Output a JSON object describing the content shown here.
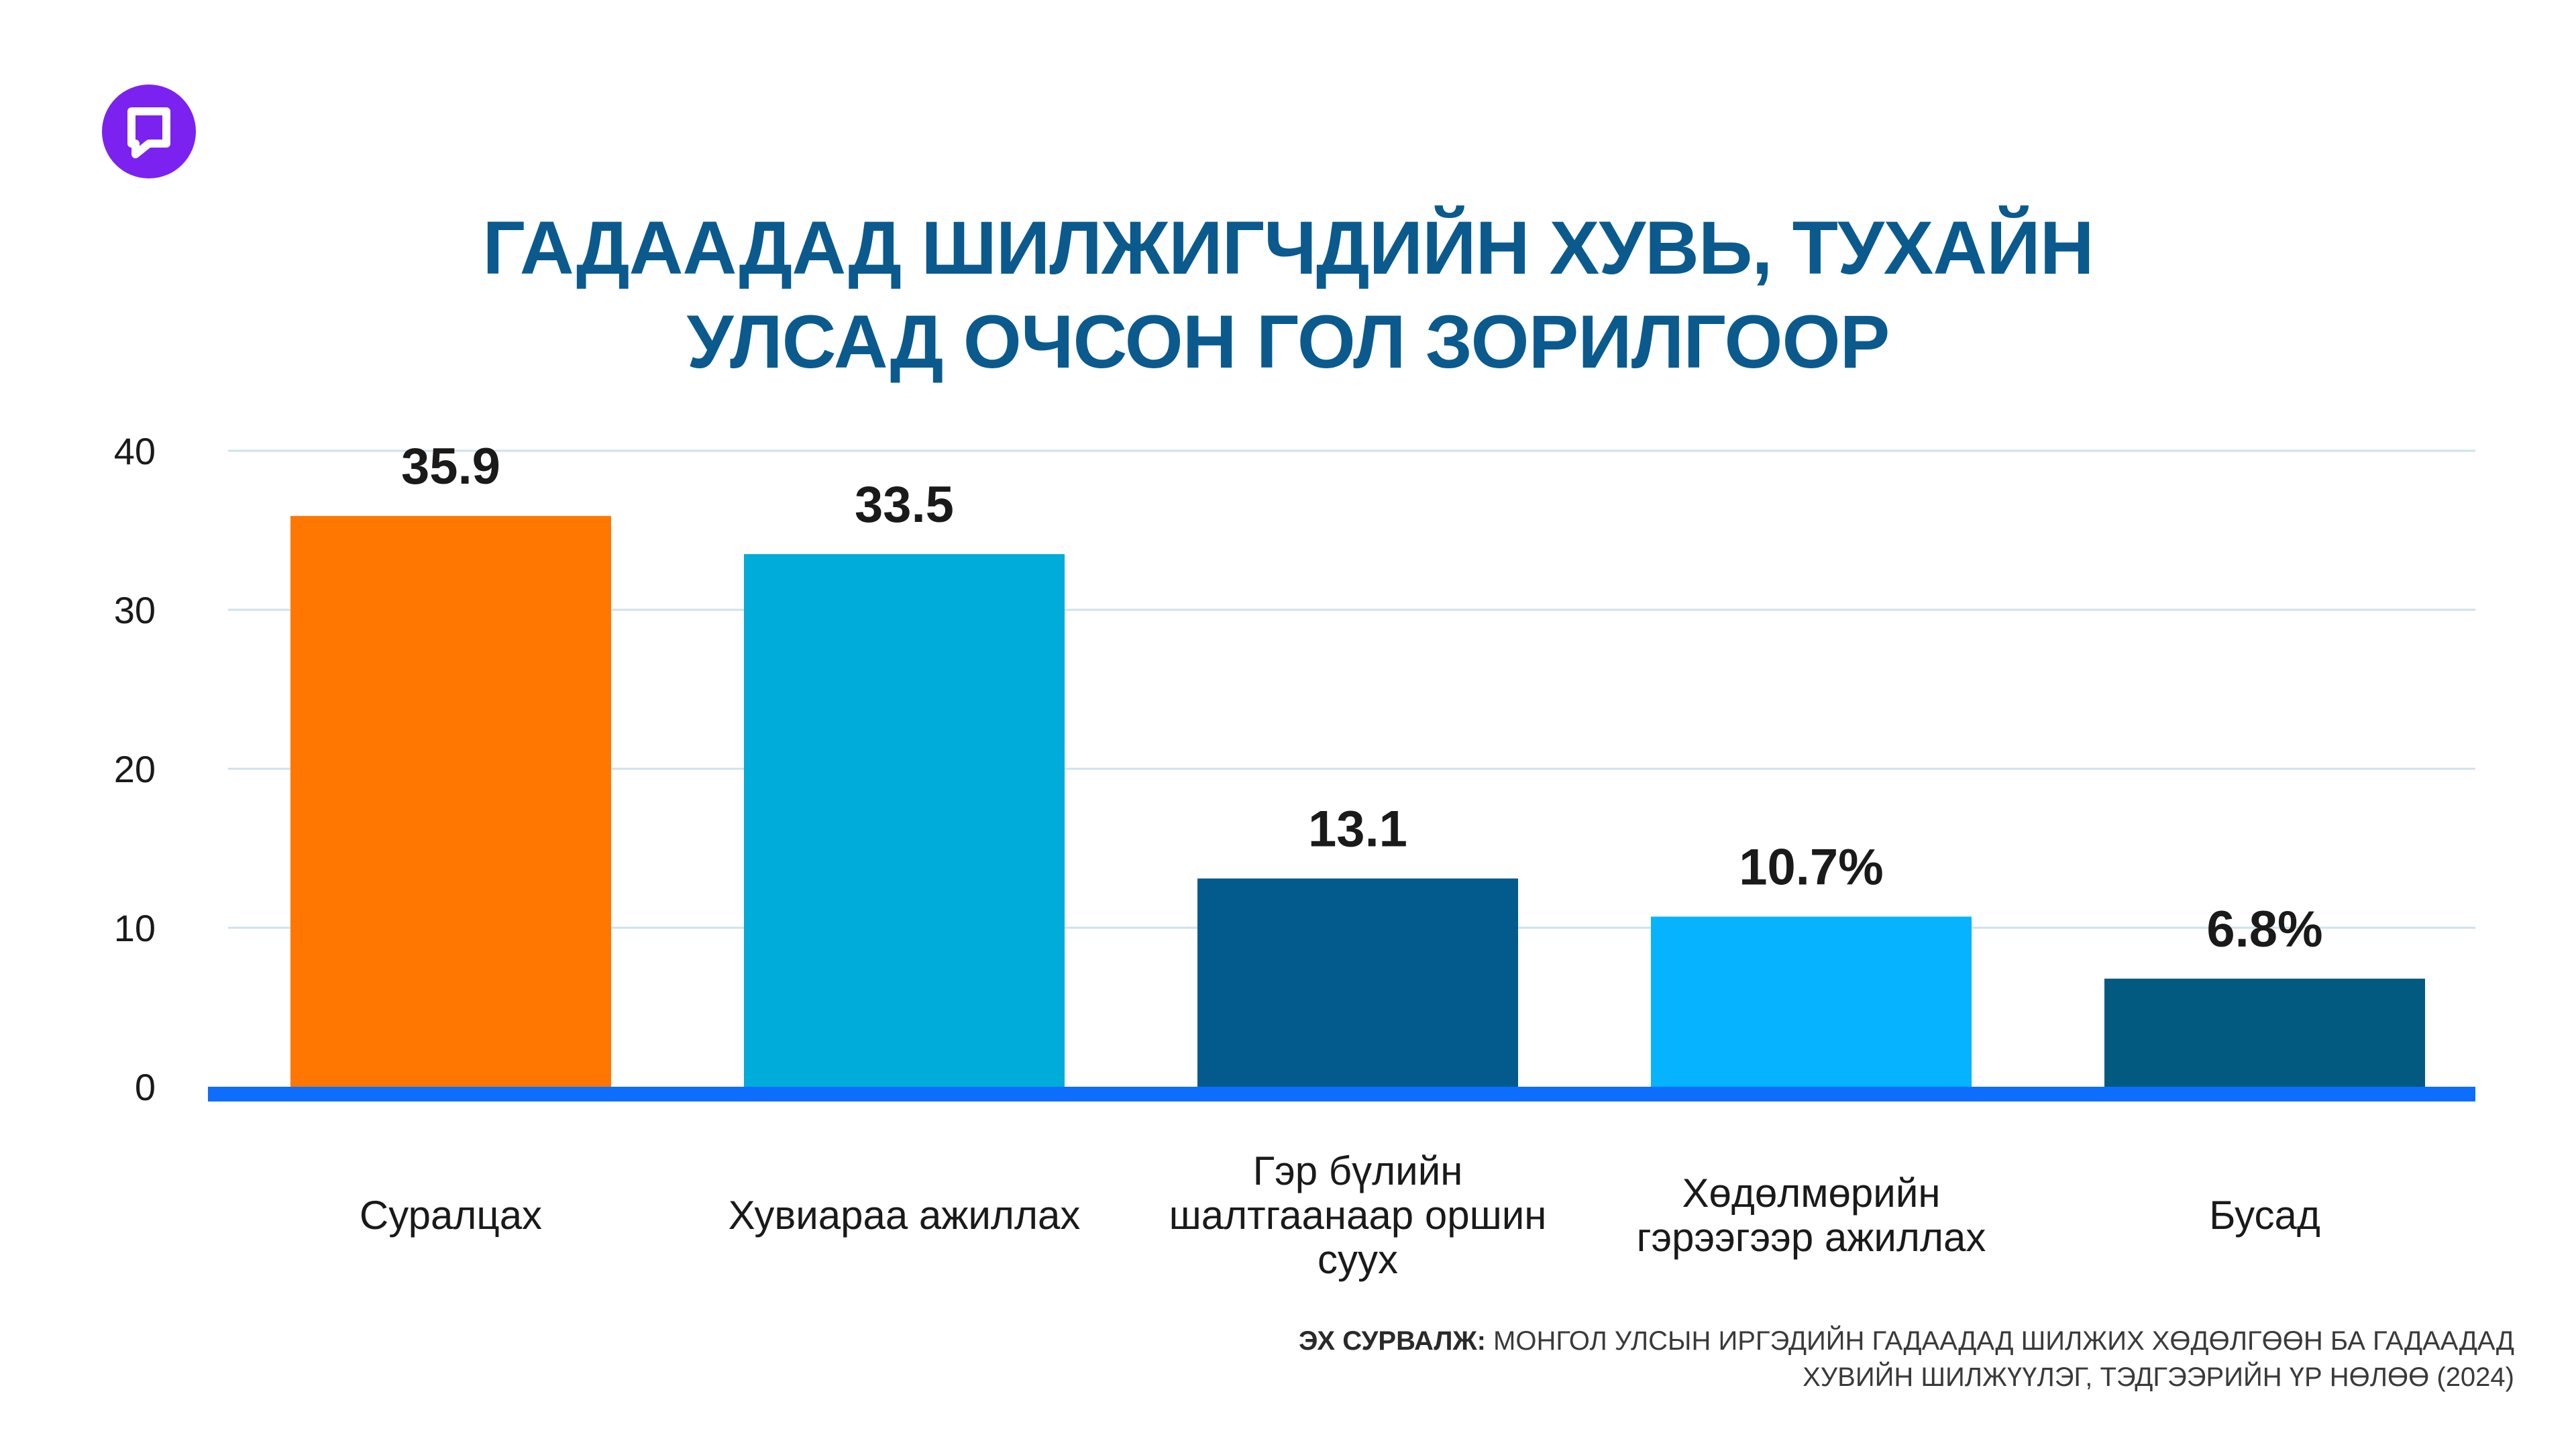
{
  "title": {
    "line1": "ГАДААДАД ШИЛЖИГЧДИЙН ХУВЬ, ТУХАЙН",
    "line2": "УЛСАД ОЧСОН ГОЛ ЗОРИЛГООР"
  },
  "brand": {
    "logo_icon": "speech-bubble-icon",
    "logo_color": "#7b22f0"
  },
  "source": {
    "label": "ЭХ СУРВАЛЖ:",
    "line1": "МОНГОЛ УЛСЫН ИРГЭДИЙН ГАДААДАД ШИЛЖИХ ХӨДӨЛГӨӨН БА ГАДААДАД",
    "line2": "ХУВИЙН ШИЛЖҮҮЛЭГ, ТЭДГЭЭРИЙН ҮР НӨЛӨӨ (2024)"
  },
  "chart_data": {
    "type": "bar",
    "categories": [
      [
        "Суралцах"
      ],
      [
        "Хувиараа ажиллах"
      ],
      [
        "Гэр бүлийн",
        "шалтгаанаар оршин",
        "суух"
      ],
      [
        "Хөдөлмөрийн",
        "гэрээгээр ажиллах"
      ],
      [
        "Бусад"
      ]
    ],
    "values": [
      35.9,
      33.5,
      13.1,
      10.7,
      6.8
    ],
    "value_labels": [
      "35.9",
      "33.5",
      "13.1",
      "10.7%",
      "6.8%"
    ],
    "bar_colors": [
      "#ff7700",
      "#00acd9",
      "#035a8c",
      "#05b3ff",
      "#035a80"
    ],
    "ylim": [
      0,
      40
    ],
    "yticks": [
      "0",
      "10",
      "20",
      "30",
      "40"
    ],
    "grid": true,
    "baseline_color": "#0d6efd"
  }
}
